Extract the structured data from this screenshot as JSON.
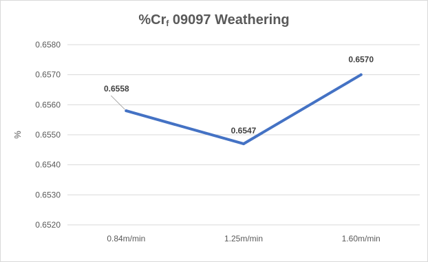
{
  "chart_data": {
    "type": "line",
    "title": {
      "prefix": "%Cr",
      "subscript": "f",
      "suffix": " 09097 Weathering"
    },
    "xlabel": "",
    "ylabel": "%",
    "categories": [
      "0.84m/min",
      "1.25m/min",
      "1.60m/min"
    ],
    "series": [
      {
        "values": [
          0.6558,
          0.6547,
          0.657
        ],
        "labels": [
          "0.6558",
          "0.6547",
          "0.6570"
        ],
        "color": "#4472c4"
      }
    ],
    "ylim": [
      0.652,
      0.658
    ],
    "yticks": [
      "0.6520",
      "0.6530",
      "0.6540",
      "0.6550",
      "0.6560",
      "0.6570",
      "0.6580"
    ],
    "grid": true,
    "legend": "none",
    "gridline_color": "#d9d9d9"
  }
}
